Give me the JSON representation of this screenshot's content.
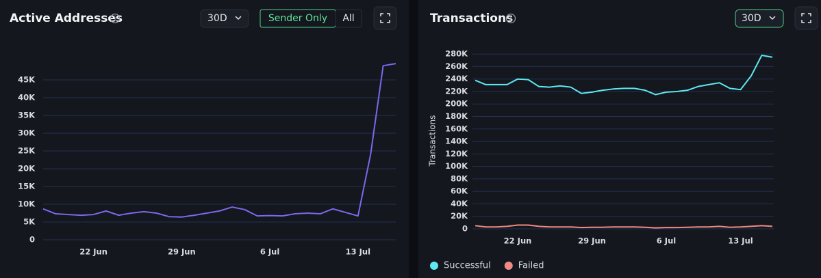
{
  "chart_data": [
    {
      "type": "line",
      "title": "Active Addresses",
      "period": "30D",
      "toggles": [
        "Sender Only",
        "All"
      ],
      "categories": [
        null,
        null,
        null,
        null,
        "22 Jun",
        null,
        null,
        null,
        null,
        null,
        null,
        "29 Jun",
        null,
        null,
        null,
        null,
        null,
        null,
        "6 Jul",
        null,
        null,
        null,
        null,
        null,
        null,
        "13 Jul",
        null,
        null,
        null
      ],
      "values": [
        8700,
        7300,
        7100,
        6900,
        7100,
        8100,
        6900,
        7500,
        7900,
        7500,
        6500,
        6400,
        6900,
        7500,
        8100,
        9200,
        8500,
        6700,
        6800,
        6700,
        7300,
        7500,
        7300,
        8700,
        7700,
        6700,
        24000,
        49000,
        49600
      ],
      "color": "#7b68ee",
      "ylim": [
        0,
        50000
      ],
      "yticks": [
        0,
        {
          "value": 5000,
          "label": "5K"
        },
        {
          "value": 10000,
          "label": "10K"
        },
        {
          "value": 15000,
          "label": "15K"
        },
        {
          "value": 20000,
          "label": "20K"
        },
        {
          "value": 25000,
          "label": "25K"
        },
        {
          "value": 30000,
          "label": "30K"
        },
        {
          "value": 35000,
          "label": "35K"
        },
        {
          "value": 40000,
          "label": "40K"
        },
        {
          "value": 45000,
          "label": "45K"
        }
      ],
      "grid": true
    },
    {
      "type": "line",
      "title": "Transactions",
      "period": "30D",
      "y_label": "Transactions",
      "categories": [
        null,
        null,
        null,
        null,
        "22 Jun",
        null,
        null,
        null,
        null,
        null,
        null,
        "29 Jun",
        null,
        null,
        null,
        null,
        null,
        null,
        "6 Jul",
        null,
        null,
        null,
        null,
        null,
        null,
        "13 Jul",
        null,
        null,
        null
      ],
      "series": [
        {
          "name": "Successful",
          "color": "#5ee8f0",
          "values": [
            238000,
            231000,
            231000,
            231000,
            240000,
            239000,
            228000,
            227000,
            229000,
            227000,
            217000,
            219000,
            222000,
            224000,
            225000,
            225000,
            222000,
            215000,
            219000,
            220000,
            222000,
            228000,
            231000,
            234000,
            225000,
            223000,
            245000,
            278000,
            275000
          ]
        },
        {
          "name": "Failed",
          "color": "#f08a84",
          "values": [
            5000,
            3000,
            3000,
            4000,
            6000,
            6000,
            4000,
            3000,
            3000,
            3000,
            2000,
            2500,
            2500,
            3000,
            3000,
            3000,
            2500,
            1500,
            2000,
            2000,
            2500,
            3000,
            3000,
            4000,
            2500,
            3000,
            4000,
            5000,
            4000
          ]
        }
      ],
      "ylim": [
        0,
        290000
      ],
      "yticks": [
        0,
        {
          "value": 20000,
          "label": "20K"
        },
        {
          "value": 40000,
          "label": "40K"
        },
        {
          "value": 60000,
          "label": "60K"
        },
        {
          "value": 80000,
          "label": "80K"
        },
        {
          "value": 100000,
          "label": "100K"
        },
        {
          "value": 120000,
          "label": "120K"
        },
        {
          "value": 140000,
          "label": "140K"
        },
        {
          "value": 160000,
          "label": "160K"
        },
        {
          "value": 180000,
          "label": "180K"
        },
        {
          "value": 200000,
          "label": "200K"
        },
        {
          "value": 220000,
          "label": "220K"
        },
        {
          "value": 240000,
          "label": "240K"
        },
        {
          "value": 260000,
          "label": "260K"
        },
        {
          "value": 280000,
          "label": "280K"
        }
      ],
      "grid": true,
      "legend": "bottom"
    }
  ]
}
